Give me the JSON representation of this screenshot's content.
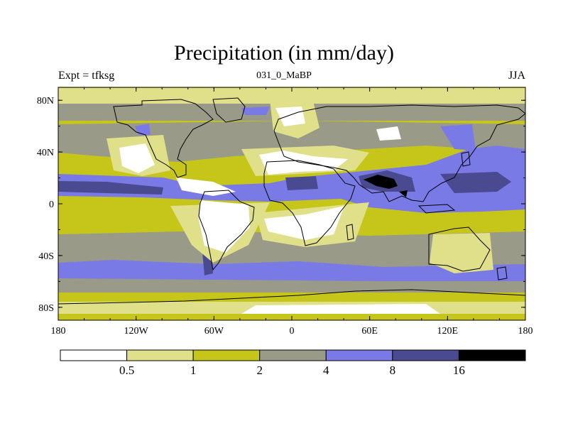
{
  "title": "Precipitation (in mm/day)",
  "subtitle_left": "Expt = tfksg",
  "subtitle_center": "031_0_MaBP",
  "subtitle_right": "JJA",
  "map": {
    "lon_range": [
      -180,
      180
    ],
    "lat_range": [
      -90,
      90
    ],
    "x_ticks": [
      {
        "value": -180,
        "label": "180"
      },
      {
        "value": -120,
        "label": "120W"
      },
      {
        "value": -60,
        "label": "60W"
      },
      {
        "value": 0,
        "label": "0"
      },
      {
        "value": 60,
        "label": "60E"
      },
      {
        "value": 120,
        "label": "120E"
      },
      {
        "value": 180,
        "label": "180"
      }
    ],
    "y_ticks": [
      {
        "value": 80,
        "label": "80N"
      },
      {
        "value": 40,
        "label": "40N"
      },
      {
        "value": 0,
        "label": "0"
      },
      {
        "value": -40,
        "label": "40S"
      },
      {
        "value": -80,
        "label": "80S"
      }
    ]
  },
  "colorbar": {
    "thresholds": [
      "0.5",
      "1",
      "2",
      "4",
      "8",
      "16"
    ],
    "colors": [
      "#ffffff",
      "#e0e08a",
      "#c6c61a",
      "#9a9a88",
      "#7a7ae6",
      "#4a4a90",
      "#000000"
    ]
  },
  "colors": {
    "dry": "#ffffff",
    "light": "#e0e08a",
    "olive": "#c6c61a",
    "gray": "#9a9a88",
    "blue": "#7a7ae6",
    "dark_blue": "#4a4a90",
    "black": "#000000"
  }
}
